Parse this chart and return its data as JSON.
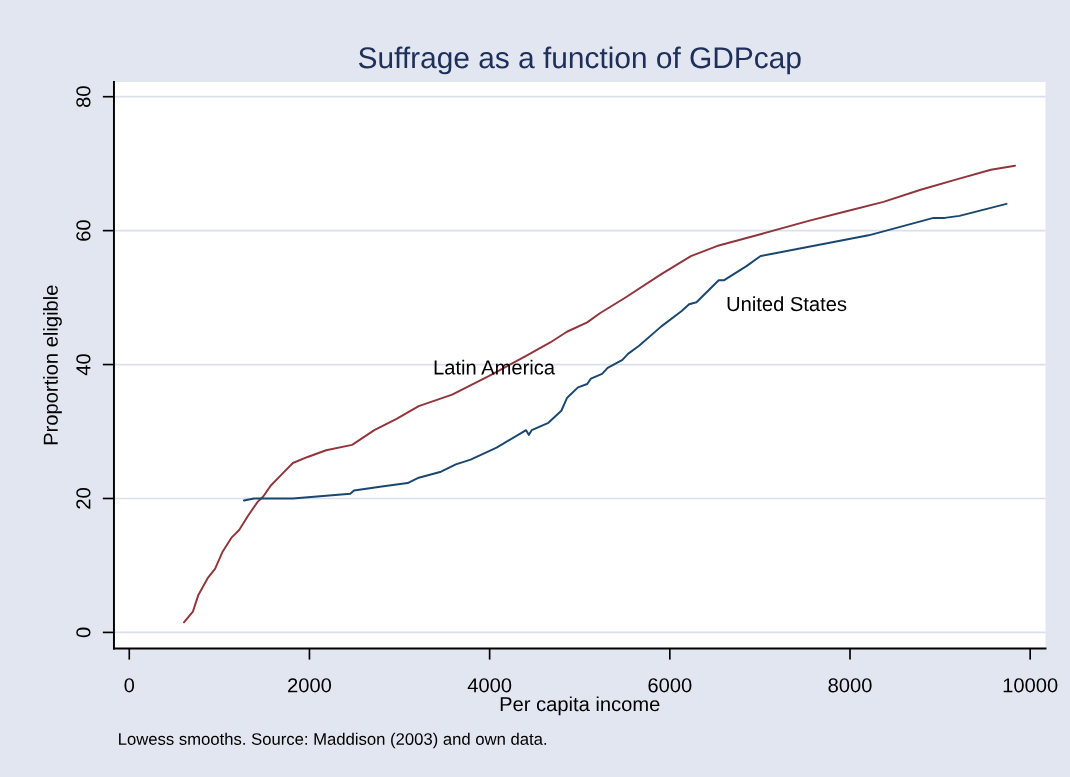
{
  "chart_data": {
    "type": "line",
    "title": "Suffrage as a function of GDPcap",
    "xlabel": "Per capita income",
    "ylabel": "Proportion eligible",
    "annotations": [
      "Lowess smooths. Source: Maddison (2003) and own data."
    ],
    "xlim": [
      -170,
      10170
    ],
    "ylim": [
      -2.4,
      82.2
    ],
    "xticks": [
      0,
      2000,
      4000,
      6000,
      8000,
      10000
    ],
    "yticks": [
      0,
      20,
      40,
      60,
      80
    ],
    "grid": "y",
    "series": [
      {
        "name": "Latin America",
        "color": "#90353b",
        "x": [
          607,
          706,
          767,
          870,
          952,
          1034,
          1138,
          1220,
          1322,
          1425,
          1487,
          1569,
          1692,
          1816,
          1980,
          2185,
          2474,
          2720,
          2967,
          3213,
          3584,
          3995,
          4405,
          4673,
          4858,
          5083,
          5228,
          5495,
          5906,
          6234,
          6523,
          7016,
          7551,
          7961,
          8372,
          8784,
          9194,
          9564,
          9832
        ],
        "values": [
          1.5,
          3.1,
          5.6,
          8.1,
          9.5,
          12.0,
          14.2,
          15.3,
          17.5,
          19.5,
          20.3,
          21.9,
          23.6,
          25.3,
          26.2,
          27.2,
          28.0,
          30.2,
          31.9,
          33.8,
          35.5,
          38.3,
          41.3,
          43.3,
          44.9,
          46.3,
          47.7,
          49.9,
          53.5,
          56.2,
          57.7,
          59.5,
          61.5,
          62.9,
          64.3,
          66.1,
          67.7,
          69.1,
          69.7
        ]
      },
      {
        "name": "United States",
        "color": "#1a476f",
        "x": [
          1273,
          1384,
          1816,
          2453,
          2494,
          2803,
          3090,
          3213,
          3460,
          3625,
          3789,
          4077,
          4405,
          4434,
          4467,
          4652,
          4796,
          4858,
          4981,
          5083,
          5124,
          5248,
          5310,
          5474,
          5536,
          5659,
          5906,
          6132,
          6214,
          6296,
          6543,
          6604,
          6851,
          7008,
          8207,
          8927,
          9051,
          9215,
          9737
        ],
        "values": [
          19.7,
          20.0,
          20.0,
          20.7,
          21.2,
          21.8,
          22.3,
          23.1,
          24.0,
          25.1,
          25.8,
          27.6,
          30.2,
          29.5,
          30.2,
          31.3,
          33.1,
          35.0,
          36.6,
          37.1,
          37.9,
          38.6,
          39.5,
          40.7,
          41.6,
          42.8,
          45.7,
          48.0,
          49.0,
          49.3,
          52.6,
          52.6,
          54.7,
          56.2,
          59.3,
          61.9,
          61.9,
          62.2,
          64.0
        ]
      }
    ]
  }
}
